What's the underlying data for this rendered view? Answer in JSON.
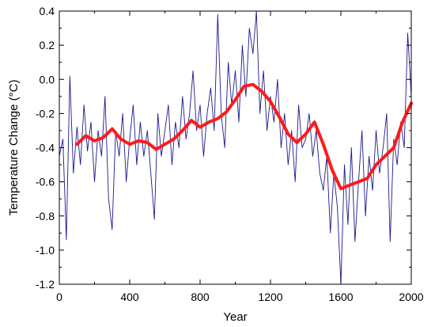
{
  "chart_data": {
    "type": "line",
    "xlabel": "Year",
    "ylabel": "Temperature Change (°C)",
    "xlim": [
      0,
      2000
    ],
    "ylim": [
      -1.2,
      0.4
    ],
    "x_ticks": [
      0,
      400,
      800,
      1200,
      1600,
      2000
    ],
    "x_tick_labels": [
      "0",
      "400",
      "800",
      "1200",
      "1600",
      "2000"
    ],
    "y_ticks": [
      -1.2,
      -1.0,
      -0.8,
      -0.6,
      -0.4,
      -0.2,
      0.0,
      0.2,
      0.4
    ],
    "y_tick_labels": [
      "-1.2",
      "-1.0",
      "-0.8",
      "-0.6",
      "-0.4",
      "-0.2",
      "0.0",
      "0.2",
      "0.4"
    ],
    "grid": false,
    "series": [
      {
        "color": "#1a1a8c",
        "x": [
          0,
          20,
          40,
          60,
          80,
          100,
          120,
          140,
          160,
          180,
          200,
          220,
          240,
          260,
          280,
          300,
          320,
          340,
          360,
          380,
          400,
          420,
          440,
          460,
          480,
          500,
          520,
          540,
          560,
          580,
          600,
          620,
          640,
          660,
          680,
          700,
          720,
          740,
          760,
          780,
          800,
          820,
          840,
          860,
          880,
          900,
          920,
          940,
          960,
          980,
          1000,
          1020,
          1040,
          1060,
          1080,
          1100,
          1120,
          1140,
          1160,
          1180,
          1200,
          1220,
          1240,
          1260,
          1280,
          1300,
          1320,
          1340,
          1360,
          1380,
          1400,
          1420,
          1440,
          1460,
          1480,
          1500,
          1520,
          1540,
          1560,
          1580,
          1600,
          1620,
          1640,
          1660,
          1680,
          1700,
          1720,
          1740,
          1760,
          1780,
          1800,
          1820,
          1840,
          1860,
          1880,
          1900,
          1920,
          1940,
          1960,
          1980,
          2000
        ],
        "values": [
          -0.45,
          -0.35,
          -0.94,
          0.02,
          -0.55,
          -0.28,
          -0.5,
          -0.15,
          -0.42,
          -0.25,
          -0.6,
          -0.3,
          -0.45,
          -0.1,
          -0.7,
          -0.88,
          -0.3,
          -0.45,
          -0.2,
          -0.6,
          -0.35,
          -0.15,
          -0.5,
          -0.25,
          -0.45,
          -0.3,
          -0.55,
          -0.82,
          -0.2,
          -0.45,
          -0.3,
          -0.15,
          -0.5,
          -0.25,
          -0.4,
          -0.1,
          -0.35,
          -0.2,
          0.05,
          -0.3,
          -0.15,
          -0.45,
          -0.2,
          -0.05,
          -0.3,
          0.38,
          -0.2,
          -0.4,
          0.1,
          -0.15,
          0.05,
          -0.25,
          0.2,
          -0.1,
          0.3,
          0.15,
          0.4,
          -0.2,
          0.05,
          -0.3,
          -0.1,
          -0.25,
          0.0,
          -0.4,
          -0.2,
          -0.5,
          -0.3,
          -0.6,
          -0.15,
          -0.4,
          -0.35,
          -0.2,
          -0.45,
          -0.3,
          -0.55,
          -0.65,
          -0.45,
          -0.9,
          -0.55,
          -0.75,
          -1.2,
          -0.5,
          -0.85,
          -0.4,
          -0.95,
          -0.6,
          -0.3,
          -0.8,
          -0.45,
          -0.65,
          -0.3,
          -0.55,
          -0.4,
          -0.2,
          -0.95,
          -0.35,
          -0.5,
          -0.25,
          -0.4,
          0.27,
          -0.1
        ]
      },
      {
        "color": "#ff1a1a",
        "x": [
          100,
          150,
          200,
          250,
          300,
          350,
          400,
          450,
          500,
          550,
          600,
          650,
          700,
          750,
          800,
          850,
          900,
          950,
          1000,
          1050,
          1100,
          1150,
          1200,
          1250,
          1300,
          1350,
          1400,
          1450,
          1500,
          1550,
          1600,
          1650,
          1700,
          1750,
          1800,
          1850,
          1900,
          1950,
          2000
        ],
        "values": [
          -0.38,
          -0.33,
          -0.36,
          -0.34,
          -0.29,
          -0.35,
          -0.38,
          -0.36,
          -0.37,
          -0.41,
          -0.38,
          -0.35,
          -0.3,
          -0.24,
          -0.28,
          -0.25,
          -0.23,
          -0.19,
          -0.12,
          -0.04,
          -0.03,
          -0.07,
          -0.13,
          -0.22,
          -0.32,
          -0.37,
          -0.32,
          -0.25,
          -0.38,
          -0.53,
          -0.64,
          -0.62,
          -0.6,
          -0.58,
          -0.5,
          -0.45,
          -0.4,
          -0.25,
          -0.14
        ]
      }
    ]
  }
}
